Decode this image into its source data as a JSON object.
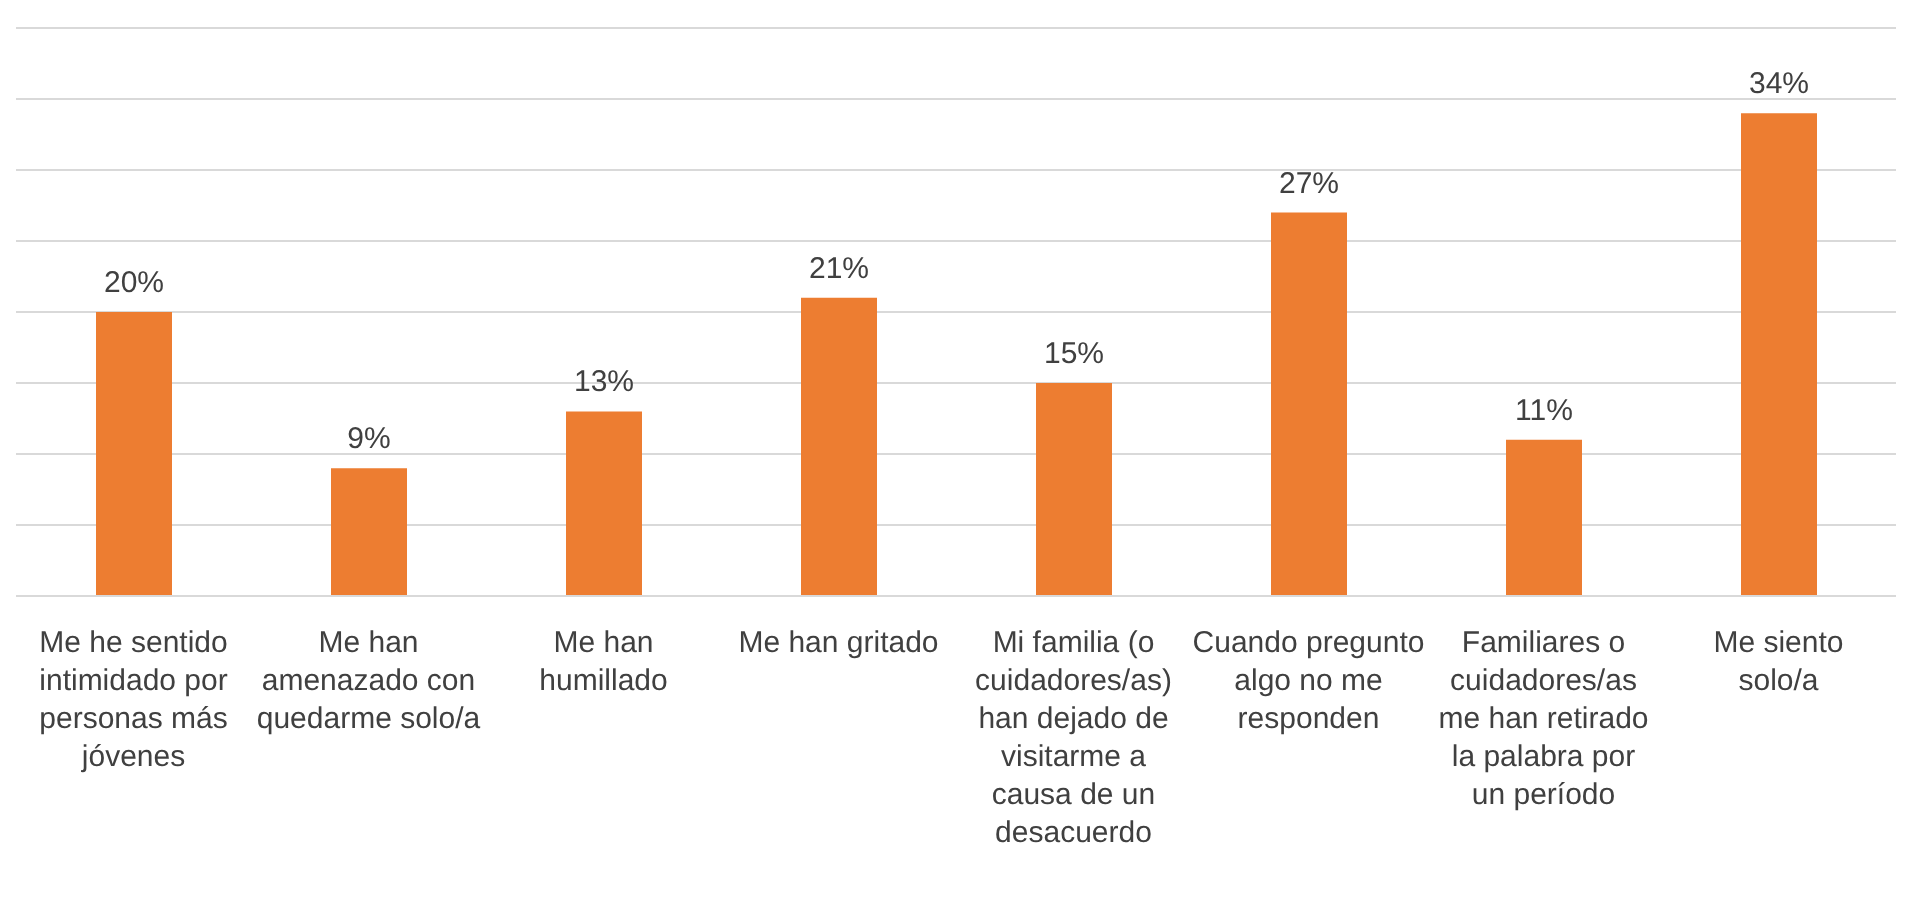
{
  "chart_data": {
    "type": "bar",
    "categories": [
      "Me he sentido intimidado por personas más jóvenes",
      "Me han amenazado con quedarme solo/a",
      "Me han humillado",
      "Me han gritado",
      "Mi familia (o cuidadores/as) han dejado de visitarme a causa de un desacuerdo",
      "Cuando pregunto algo no me responden",
      "Familiares o cuidadores/as me han retirado la palabra por un período",
      "Me siento solo/a"
    ],
    "values": [
      20,
      9,
      13,
      21,
      15,
      27,
      11,
      34
    ],
    "value_labels": [
      "20%",
      "9%",
      "13%",
      "21%",
      "15%",
      "27%",
      "11%",
      "34%"
    ],
    "color": "#ed7d31",
    "grid": "y",
    "tick_labels": "x"
  }
}
